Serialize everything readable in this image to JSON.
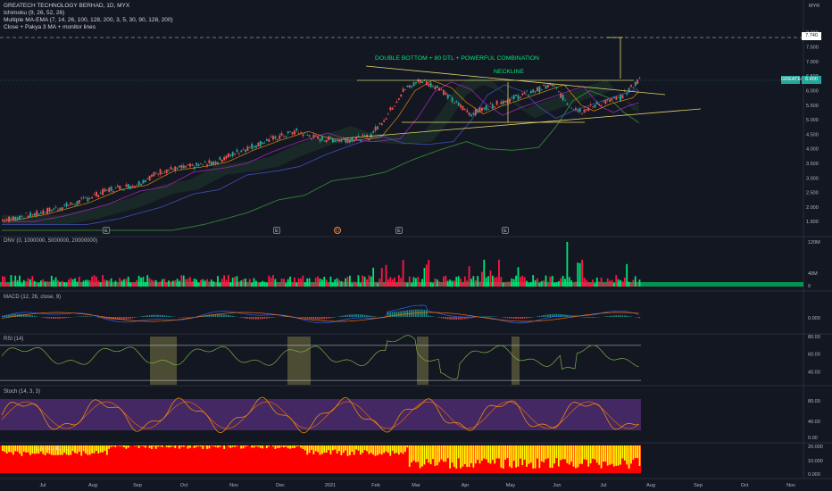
{
  "header": {
    "title": "GREATECH TECHNOLOGY BERHAD, 1D, MYX",
    "indicators": [
      "Ichimoku (9, 26, 52, 26)",
      "Multiple MA-EMA (7, 14, 26, 100, 128, 200, 3, 5, 30, 90, 128, 200)",
      "Close + Pakya 3 MA + monitor lines"
    ],
    "currency": "MYR"
  },
  "annotations": {
    "pattern_text": "DOUBLE BOTTOM + 80 DTL + POWERFUL COMBINATION",
    "neckline_text": "NECKLINE"
  },
  "price_axis": {
    "ticks": [
      "8.000",
      "7.500",
      "7.000",
      "6.500",
      "6.000",
      "5.500",
      "5.000",
      "4.500",
      "4.000",
      "3.500",
      "3.000",
      "2.500",
      "2.000",
      "1.500"
    ],
    "target_label": "7.740",
    "symbol_label": "GREATEC",
    "last_price": "6.400"
  },
  "time_axis": {
    "labels": [
      "Jul",
      "Aug",
      "Sep",
      "Oct",
      "Nov",
      "Dec",
      "2021",
      "Feb",
      "Mar",
      "Apr",
      "May",
      "Jun",
      "Jul",
      "Aug",
      "Sep",
      "Oct",
      "Nov"
    ]
  },
  "events": {
    "earnings": [
      "E",
      "E",
      "E",
      "E"
    ],
    "dividend": "D"
  },
  "panes": {
    "volume": {
      "label": "DNV (0, 1000000, 5000000, 20000000)",
      "ticks": [
        "120M",
        "40M",
        "0"
      ]
    },
    "macd": {
      "label": "MACD (12, 26, close, 9)",
      "ticks": [
        "0.000"
      ]
    },
    "rsi": {
      "label": "RSI (14)",
      "ticks": [
        "80.00",
        "60.00",
        "40.00"
      ]
    },
    "stoch": {
      "label": "Stoch (14, 3, 3)",
      "ticks": [
        "80.00",
        "40.00",
        "0.00"
      ]
    },
    "bottom": {
      "label": "3, 5, 30, 40, 3, 1",
      "ticks": [
        "20.000",
        "10.000",
        "0.000"
      ]
    }
  },
  "colors": {
    "background": "#131722",
    "up": "#26a69a",
    "down": "#ef5350",
    "vol_up": "#00e676",
    "vol_down": "#ff1744",
    "annotation": "#00e676",
    "trendline": "#e6d66a",
    "rsi_band": "#b8b05a",
    "stoch_band": "#4a2a6b",
    "bottom_up": "#ffff00",
    "bottom_down": "#ff0000"
  }
}
